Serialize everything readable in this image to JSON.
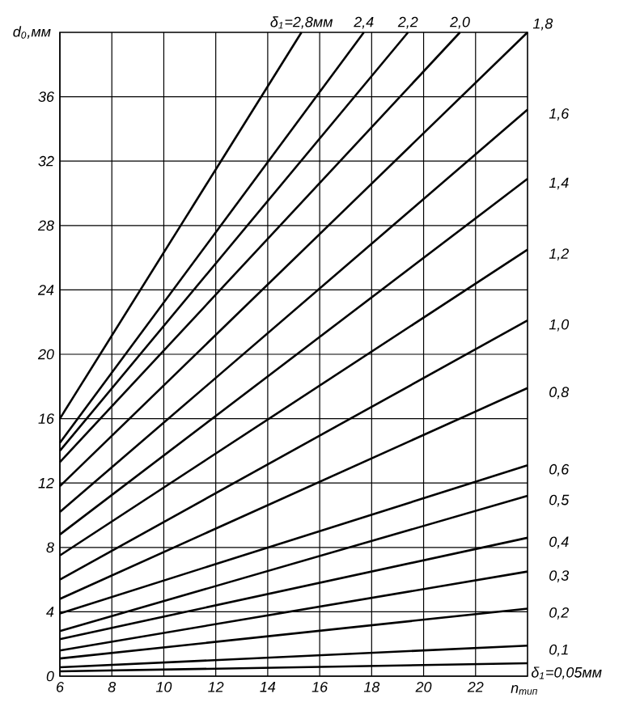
{
  "chart_data": {
    "type": "line",
    "xlabel": "n$_{тип}$",
    "ylabel": "d$_{0}$,мм",
    "xlim": [
      6,
      24
    ],
    "ylim": [
      0,
      40
    ],
    "xticks": [
      6,
      8,
      10,
      12,
      14,
      16,
      18,
      20,
      22
    ],
    "yticks": [
      0,
      4,
      8,
      12,
      16,
      20,
      24,
      28,
      32,
      36
    ],
    "grid": true,
    "line_style": "solid",
    "marker": "none",
    "series": [
      {
        "name": "δ$_{1}$=2,8мм",
        "color": "#000000",
        "x": [
          6,
          15.3
        ],
        "values": [
          16.0,
          40
        ]
      },
      {
        "name": "2,4",
        "color": "#000000",
        "x": [
          6,
          17.7
        ],
        "values": [
          14.5,
          40
        ]
      },
      {
        "name": "2,2",
        "color": "#000000",
        "x": [
          6,
          19.4
        ],
        "values": [
          14.0,
          40
        ]
      },
      {
        "name": "2,0",
        "color": "#000000",
        "x": [
          6,
          21.4
        ],
        "values": [
          13.3,
          40
        ]
      },
      {
        "name": "1,8",
        "color": "#000000",
        "x": [
          6,
          24
        ],
        "values": [
          11.8,
          40
        ]
      },
      {
        "name": "1,6",
        "color": "#000000",
        "x": [
          6,
          24
        ],
        "values": [
          10.2,
          35.2
        ]
      },
      {
        "name": "1,4",
        "color": "#000000",
        "x": [
          6,
          24
        ],
        "values": [
          8.8,
          30.9
        ]
      },
      {
        "name": "1,2",
        "color": "#000000",
        "x": [
          6,
          24
        ],
        "values": [
          7.5,
          26.5
        ]
      },
      {
        "name": "1,0",
        "color": "#000000",
        "x": [
          6,
          24
        ],
        "values": [
          6.0,
          22.1
        ]
      },
      {
        "name": "0,8",
        "color": "#000000",
        "x": [
          6,
          24
        ],
        "values": [
          4.8,
          17.9
        ]
      },
      {
        "name": "0,6",
        "color": "#000000",
        "x": [
          6,
          24
        ],
        "values": [
          3.9,
          13.1
        ]
      },
      {
        "name": "0,5",
        "color": "#000000",
        "x": [
          6,
          24
        ],
        "values": [
          2.8,
          11.2
        ]
      },
      {
        "name": "0,4",
        "color": "#000000",
        "x": [
          6,
          24
        ],
        "values": [
          2.3,
          8.6
        ]
      },
      {
        "name": "0,3",
        "color": "#000000",
        "x": [
          6,
          24
        ],
        "values": [
          1.6,
          6.5
        ]
      },
      {
        "name": "0,2",
        "color": "#000000",
        "x": [
          6,
          24
        ],
        "values": [
          1.1,
          4.2
        ]
      },
      {
        "name": "0,1",
        "color": "#000000",
        "x": [
          6,
          24
        ],
        "values": [
          0.55,
          1.9
        ]
      },
      {
        "name": "δ$_{1}$=0,05мм",
        "color": "#000000",
        "x": [
          6,
          24
        ],
        "values": [
          0.3,
          0.8
        ]
      }
    ]
  }
}
